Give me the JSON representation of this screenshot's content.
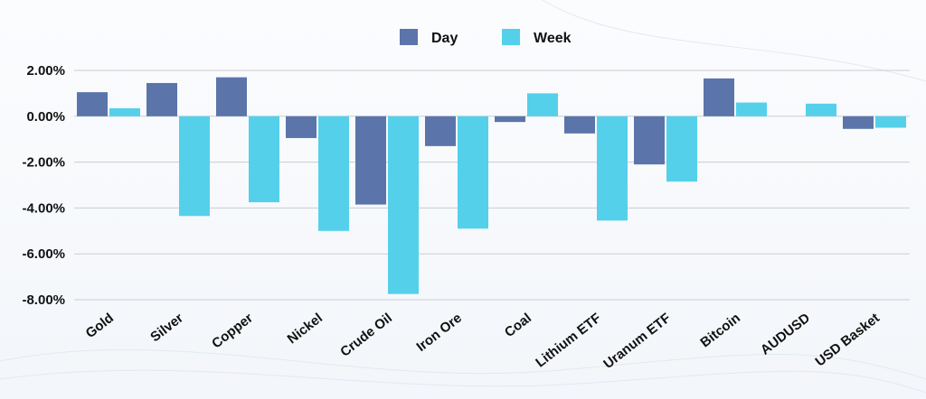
{
  "chart_data": {
    "type": "bar",
    "title": "",
    "xlabel": "",
    "ylabel": "",
    "categories": [
      "Gold",
      "Silver",
      "Copper",
      "Nickel",
      "Crude Oil",
      "Iron Ore",
      "Coal",
      "Lithium ETF",
      "Uranum ETF",
      "Bitcoin",
      "AUDUSD",
      "USD Basket"
    ],
    "series": [
      {
        "name": "Day",
        "color": "#5b75aa",
        "values": [
          1.05,
          1.45,
          1.7,
          -0.95,
          -3.85,
          -1.3,
          -0.25,
          -0.75,
          -2.1,
          1.65,
          0.0,
          -0.55
        ]
      },
      {
        "name": "Week",
        "color": "#55d0ea",
        "values": [
          0.35,
          -4.35,
          -3.75,
          -5.0,
          -7.75,
          -4.9,
          1.0,
          -4.55,
          -2.85,
          0.6,
          0.55,
          -0.5
        ]
      }
    ],
    "ylim": [
      -8.0,
      2.0
    ],
    "yticks": [
      2.0,
      0.0,
      -2.0,
      -4.0,
      -6.0,
      -8.0
    ],
    "ytick_labels": [
      "2.00%",
      "0.00%",
      "-2.00%",
      "-4.00%",
      "-6.00%",
      "-8.00%"
    ],
    "grid": true,
    "legend_position": "top-center"
  }
}
